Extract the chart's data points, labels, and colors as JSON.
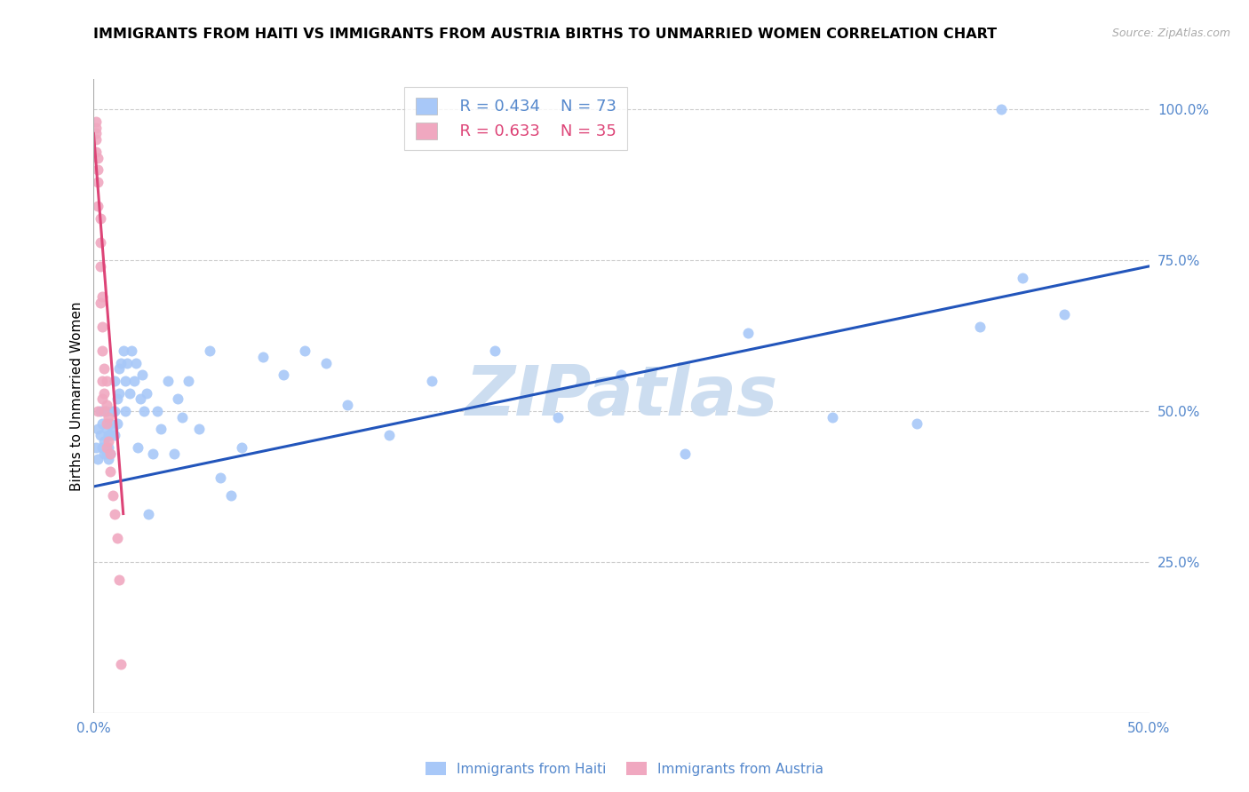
{
  "title": "IMMIGRANTS FROM HAITI VS IMMIGRANTS FROM AUSTRIA BIRTHS TO UNMARRIED WOMEN CORRELATION CHART",
  "source": "Source: ZipAtlas.com",
  "ylabel_label": "Births to Unmarried Women",
  "xlim": [
    0,
    0.5
  ],
  "ylim": [
    0,
    1.05
  ],
  "legend_haiti_r": "R = 0.434",
  "legend_haiti_n": "N = 73",
  "legend_austria_r": "R = 0.633",
  "legend_austria_n": "N = 35",
  "haiti_color": "#a8c8f8",
  "austria_color": "#f0a8c0",
  "haiti_line_color": "#2255bb",
  "austria_line_color": "#dd4477",
  "axis_label_color": "#5588cc",
  "tick_label_color": "#5588cc",
  "watermark_text": "ZIPatlas",
  "watermark_color": "#ccddf0",
  "haiti_scatter_x": [
    0.001,
    0.002,
    0.002,
    0.003,
    0.003,
    0.004,
    0.004,
    0.005,
    0.005,
    0.006,
    0.006,
    0.006,
    0.007,
    0.007,
    0.007,
    0.008,
    0.008,
    0.008,
    0.009,
    0.009,
    0.01,
    0.01,
    0.01,
    0.011,
    0.011,
    0.012,
    0.012,
    0.013,
    0.014,
    0.015,
    0.015,
    0.016,
    0.017,
    0.018,
    0.019,
    0.02,
    0.021,
    0.022,
    0.023,
    0.024,
    0.025,
    0.026,
    0.028,
    0.03,
    0.032,
    0.035,
    0.038,
    0.04,
    0.042,
    0.045,
    0.05,
    0.055,
    0.06,
    0.065,
    0.07,
    0.08,
    0.09,
    0.1,
    0.11,
    0.12,
    0.14,
    0.16,
    0.19,
    0.22,
    0.25,
    0.28,
    0.31,
    0.35,
    0.39,
    0.42,
    0.44,
    0.46,
    0.43
  ],
  "haiti_scatter_y": [
    0.44,
    0.42,
    0.47,
    0.46,
    0.5,
    0.44,
    0.48,
    0.45,
    0.43,
    0.47,
    0.43,
    0.5,
    0.46,
    0.44,
    0.42,
    0.48,
    0.46,
    0.43,
    0.5,
    0.47,
    0.55,
    0.5,
    0.46,
    0.52,
    0.48,
    0.57,
    0.53,
    0.58,
    0.6,
    0.55,
    0.5,
    0.58,
    0.53,
    0.6,
    0.55,
    0.58,
    0.44,
    0.52,
    0.56,
    0.5,
    0.53,
    0.33,
    0.43,
    0.5,
    0.47,
    0.55,
    0.43,
    0.52,
    0.49,
    0.55,
    0.47,
    0.6,
    0.39,
    0.36,
    0.44,
    0.59,
    0.56,
    0.6,
    0.58,
    0.51,
    0.46,
    0.55,
    0.6,
    0.49,
    0.56,
    0.43,
    0.63,
    0.49,
    0.48,
    0.64,
    0.72,
    0.66,
    1.0
  ],
  "austria_scatter_x": [
    0.001,
    0.001,
    0.001,
    0.001,
    0.001,
    0.002,
    0.002,
    0.002,
    0.002,
    0.002,
    0.003,
    0.003,
    0.003,
    0.003,
    0.004,
    0.004,
    0.004,
    0.004,
    0.004,
    0.005,
    0.005,
    0.005,
    0.006,
    0.006,
    0.006,
    0.006,
    0.007,
    0.007,
    0.008,
    0.008,
    0.009,
    0.01,
    0.011,
    0.012,
    0.013
  ],
  "austria_scatter_y": [
    0.98,
    0.97,
    0.96,
    0.95,
    0.93,
    0.92,
    0.9,
    0.88,
    0.84,
    0.5,
    0.82,
    0.78,
    0.74,
    0.68,
    0.69,
    0.64,
    0.6,
    0.55,
    0.52,
    0.57,
    0.53,
    0.5,
    0.55,
    0.51,
    0.48,
    0.44,
    0.49,
    0.45,
    0.43,
    0.4,
    0.36,
    0.33,
    0.29,
    0.22,
    0.08
  ],
  "haiti_trend_x": [
    0.0,
    0.5
  ],
  "haiti_trend_y": [
    0.375,
    0.74
  ],
  "austria_trend_x": [
    0.0,
    0.014
  ],
  "austria_trend_y": [
    0.96,
    0.33
  ]
}
